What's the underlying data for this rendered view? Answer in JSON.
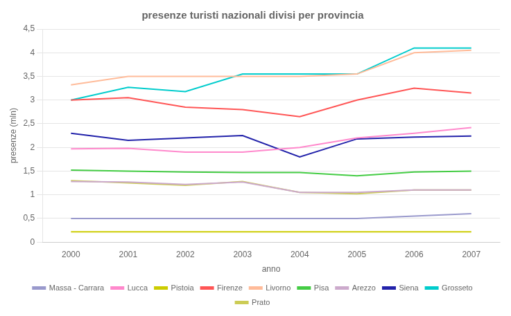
{
  "chart_data": {
    "type": "line",
    "title": "presenze turisti nazionali divisi per provincia",
    "x_label": "anno",
    "y_label": "presenze (mln)",
    "x": [
      2000,
      2001,
      2002,
      2003,
      2004,
      2005,
      2006,
      2007
    ],
    "xlim": [
      1999.5,
      2007.5
    ],
    "xticks": [
      2000,
      2001,
      2002,
      2003,
      2004,
      2005,
      2006,
      2007
    ],
    "ylim": [
      0,
      4.5
    ],
    "yticks": [
      0,
      {
        "value": 0.5,
        "label": "0,5"
      },
      1,
      {
        "value": 1.5,
        "label": "1,5"
      },
      2,
      {
        "value": 2.5,
        "label": "2,5"
      },
      3,
      {
        "value": 3.5,
        "label": "3,5"
      },
      4,
      {
        "value": 4.5,
        "label": "4,5"
      }
    ],
    "grid": "y",
    "legend": "bottom",
    "series": [
      {
        "name": "Massa - Carrara",
        "color": "#9999cc",
        "values": [
          0.5,
          0.5,
          0.5,
          0.5,
          0.5,
          0.5,
          0.55,
          0.6
        ]
      },
      {
        "name": "Lucca",
        "color": "#ff88cc",
        "values": [
          1.97,
          1.98,
          1.9,
          1.9,
          2.0,
          2.2,
          2.3,
          2.42
        ]
      },
      {
        "name": "Pistoia",
        "color": "#cccc00",
        "values": [
          0.22,
          0.22,
          0.22,
          0.22,
          0.22,
          0.22,
          0.22,
          0.22
        ]
      },
      {
        "name": "Firenze",
        "color": "#ff5555",
        "values": [
          3.0,
          3.05,
          2.85,
          2.8,
          2.65,
          3.0,
          3.25,
          3.15
        ]
      },
      {
        "name": "Livorno",
        "color": "#ffbb99",
        "values": [
          3.32,
          3.5,
          3.5,
          3.5,
          3.5,
          3.55,
          4.0,
          4.05
        ]
      },
      {
        "name": "Pisa",
        "color": "#44cc44",
        "values": [
          1.52,
          1.5,
          1.48,
          1.47,
          1.47,
          1.4,
          1.48,
          1.5
        ]
      },
      {
        "name": "Arezzo",
        "color": "#ccaacc",
        "values": [
          1.28,
          1.27,
          1.22,
          1.27,
          1.05,
          1.05,
          1.1,
          1.1
        ]
      },
      {
        "name": "Siena",
        "color": "#2222aa",
        "values": [
          2.3,
          2.15,
          2.2,
          2.25,
          1.8,
          2.18,
          2.22,
          2.24
        ]
      },
      {
        "name": "Grosseto",
        "color": "#00cccc",
        "values": [
          3.0,
          3.27,
          3.18,
          3.55,
          3.55,
          3.55,
          4.1,
          4.1
        ]
      },
      {
        "name": "Prato",
        "color": "#cccc55",
        "values": [
          1.3,
          1.25,
          1.2,
          1.28,
          1.05,
          1.02,
          1.1,
          1.1
        ]
      }
    ]
  }
}
